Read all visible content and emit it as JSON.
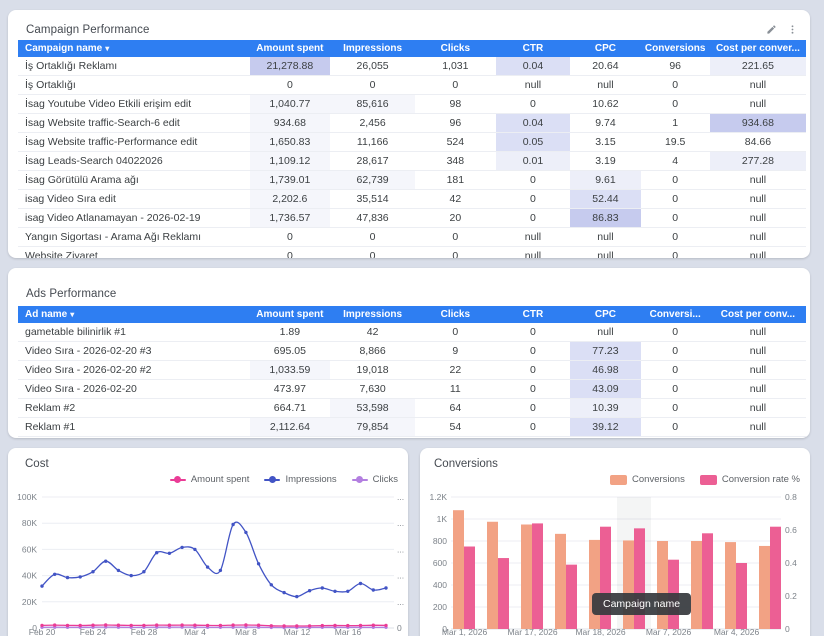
{
  "colors": {
    "page_bg": "#d9dee9",
    "table_header": "#2e7ef2",
    "heat_strong": "#c6cbee",
    "heat_medium": "#dbdff5",
    "heat_light": "#edeff9",
    "heat_faint": "#f5f6fb",
    "amount_spent_line": "#ea3c96",
    "impressions_line": "#4254c5",
    "clicks_line": "#b37fe0",
    "conversions_bar": "#f2a284",
    "conversion_rate_bar": "#ec5f94",
    "tooltip_bg": "#3c4043"
  },
  "campaign_table": {
    "title": "Campaign Performance",
    "sort_arrow": "▾",
    "columns": [
      "Campaign name",
      "Amount spent",
      "Impressions",
      "Clicks",
      "CTR",
      "CPC",
      "Conversions",
      "Cost per conver..."
    ],
    "rows": [
      {
        "cells": [
          "İş Ortaklığı Reklamı",
          "21,278.88",
          "26,055",
          "1,031",
          "0.04",
          "20.64",
          "96",
          "221.65"
        ],
        "hl": {
          "1": "h3",
          "4": "h2",
          "7": "h1"
        }
      },
      {
        "cells": [
          "İş Ortaklığı",
          "0",
          "0",
          "0",
          "null",
          "null",
          "0",
          "null"
        ],
        "hl": {}
      },
      {
        "cells": [
          "İsag Youtube Video Etkili erişim edit",
          "1,040.77",
          "85,616",
          "98",
          "0",
          "10.62",
          "0",
          "null"
        ],
        "hl": {
          "1": "h0",
          "2": "h0"
        }
      },
      {
        "cells": [
          "İsag Website traffic-Search-6 edit",
          "934.68",
          "2,456",
          "96",
          "0.04",
          "9.74",
          "1",
          "934.68"
        ],
        "hl": {
          "1": "h0",
          "4": "h2",
          "7": "h3"
        }
      },
      {
        "cells": [
          "İsag Website traffic-Performance edit",
          "1,650.83",
          "11,166",
          "524",
          "0.05",
          "3.15",
          "19.5",
          "84.66"
        ],
        "hl": {
          "1": "h0",
          "4": "h2"
        }
      },
      {
        "cells": [
          "İsag Leads-Search 04022026",
          "1,109.12",
          "28,617",
          "348",
          "0.01",
          "3.19",
          "4",
          "277.28"
        ],
        "hl": {
          "1": "h0",
          "4": "h1",
          "7": "h1"
        }
      },
      {
        "cells": [
          "İsag Görütülü Arama ağı",
          "1,739.01",
          "62,739",
          "181",
          "0",
          "9.61",
          "0",
          "null"
        ],
        "hl": {
          "1": "h0",
          "2": "h0",
          "5": "h1"
        }
      },
      {
        "cells": [
          "isag Video Sıra edit",
          "2,202.6",
          "35,514",
          "42",
          "0",
          "52.44",
          "0",
          "null"
        ],
        "hl": {
          "1": "h0",
          "5": "h2"
        }
      },
      {
        "cells": [
          "isag Video Atlanamayan - 2026-02-19",
          "1,736.57",
          "47,836",
          "20",
          "0",
          "86.83",
          "0",
          "null"
        ],
        "hl": {
          "1": "h0",
          "5": "h3"
        }
      },
      {
        "cells": [
          "Yangın Sigortası - Arama Ağı Reklamı",
          "0",
          "0",
          "0",
          "null",
          "null",
          "0",
          "null"
        ],
        "hl": {}
      },
      {
        "cells": [
          "Website Ziyaret",
          "0",
          "0",
          "0",
          "null",
          "null",
          "0",
          "null"
        ],
        "hl": {}
      }
    ]
  },
  "ads_table": {
    "title": "Ads Performance",
    "sort_arrow": "▾",
    "columns": [
      "Ad name",
      "Amount spent",
      "Impressions",
      "Clicks",
      "CTR",
      "CPC",
      "Conversi...",
      "Cost per conv..."
    ],
    "rows": [
      {
        "cells": [
          "gametable bilinirlik #1",
          "1.89",
          "42",
          "0",
          "0",
          "null",
          "0",
          "null"
        ],
        "hl": {}
      },
      {
        "cells": [
          "Video Sıra - 2026-02-20 #3",
          "695.05",
          "8,866",
          "9",
          "0",
          "77.23",
          "0",
          "null"
        ],
        "hl": {
          "5": "h2"
        }
      },
      {
        "cells": [
          "Video Sıra - 2026-02-20 #2",
          "1,033.59",
          "19,018",
          "22",
          "0",
          "46.98",
          "0",
          "null"
        ],
        "hl": {
          "1": "h0",
          "5": "h2"
        }
      },
      {
        "cells": [
          "Video Sıra - 2026-02-20",
          "473.97",
          "7,630",
          "11",
          "0",
          "43.09",
          "0",
          "null"
        ],
        "hl": {
          "5": "h2"
        }
      },
      {
        "cells": [
          "Reklam #2",
          "664.71",
          "53,598",
          "64",
          "0",
          "10.39",
          "0",
          "null"
        ],
        "hl": {
          "2": "h0",
          "5": "h1"
        }
      },
      {
        "cells": [
          "Reklam #1",
          "2,112.64",
          "79,854",
          "54",
          "0",
          "39.12",
          "0",
          "null"
        ],
        "hl": {
          "1": "h0",
          "2": "h0",
          "5": "h2"
        }
      }
    ]
  },
  "cost_chart": {
    "title": "Cost",
    "type": "line",
    "x_labels": [
      "Feb 20",
      "Feb 24",
      "Feb 28",
      "Mar 4",
      "Mar 8",
      "Mar 12",
      "Mar 16"
    ],
    "y_left_labels": [
      "100K",
      "80K",
      "60K",
      "40K",
      "20K",
      "0"
    ],
    "y_right_labels": [
      "...",
      "...",
      "...",
      "...",
      "...",
      "0"
    ],
    "ylim_k": [
      0,
      100
    ],
    "series": [
      {
        "name": "Amount spent",
        "color": "#ea3c96",
        "values_k": [
          2.0,
          2.2,
          2.0,
          1.9,
          2.1,
          2.3,
          2.1,
          2.0,
          2.0,
          2.2,
          2.1,
          2.2,
          2.1,
          2.0,
          1.9,
          2.2,
          2.3,
          2.1,
          1.7,
          1.5,
          1.5,
          1.6,
          1.8,
          1.9,
          1.8,
          1.9,
          2.1,
          2.0
        ]
      },
      {
        "name": "Impressions",
        "color": "#4254c5",
        "values_k": [
          32,
          41,
          38.5,
          39,
          43,
          51,
          44,
          40,
          43,
          57.5,
          57,
          61.5,
          60,
          46.5,
          44,
          79,
          73,
          49,
          33,
          27,
          24,
          28.5,
          30.5,
          28,
          28,
          34,
          29,
          30.5
        ]
      },
      {
        "name": "Clicks",
        "color": "#b37fe0",
        "values_k": [
          0.55,
          0.6,
          0.5,
          0.5,
          0.6,
          0.7,
          0.6,
          0.5,
          0.55,
          0.6,
          0.6,
          0.65,
          0.6,
          0.5,
          0.5,
          0.6,
          0.65,
          0.6,
          0.45,
          0.4,
          0.4,
          0.45,
          0.5,
          0.5,
          0.5,
          0.55,
          0.5,
          0.5
        ]
      }
    ]
  },
  "conversions_chart": {
    "title": "Conversions",
    "type": "bar",
    "tooltip": "Campaign name",
    "hover_group_index": 5,
    "x_labels": [
      "Mar 1, 2026",
      "Mar 17, 2026",
      "Mar 18, 2026",
      "Mar 7, 2026",
      "Mar 4, 2026"
    ],
    "y_left": {
      "labels": [
        "1.2K",
        "1K",
        "800",
        "600",
        "400",
        "200",
        "0"
      ],
      "max": 1200
    },
    "y_right": {
      "labels": [
        "0.8",
        "0.6",
        "0.4",
        "0.2",
        "0"
      ],
      "max": 0.8
    },
    "series": [
      {
        "name": "Conversions",
        "color": "#f2a284",
        "values": [
          1080,
          975,
          950,
          865,
          810,
          805,
          800,
          800,
          790,
          755
        ]
      },
      {
        "name": "Conversion rate %",
        "color": "#ec5f94",
        "values": [
          0.5,
          0.43,
          0.64,
          0.39,
          0.62,
          0.61,
          0.42,
          0.58,
          0.4,
          0.62
        ]
      }
    ]
  }
}
